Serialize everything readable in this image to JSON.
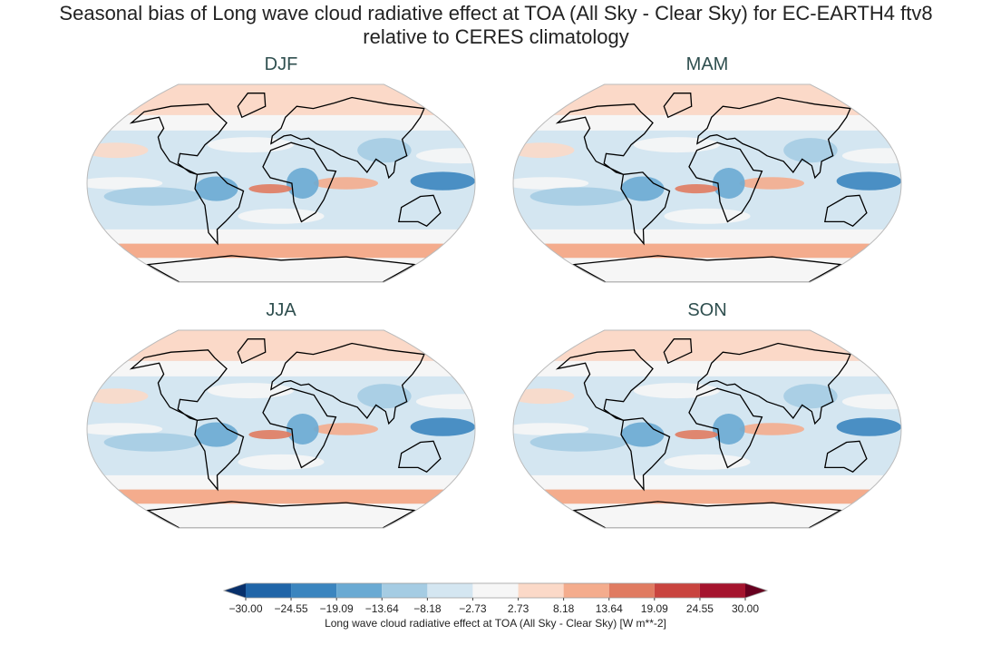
{
  "title_lines": [
    "Seasonal bias of Long wave cloud radiative effect at TOA (All Sky - Clear Sky) for EC-EARTH4 ftv8",
    "relative to CERES climatology"
  ],
  "panels": [
    {
      "title": "DJF"
    },
    {
      "title": "MAM"
    },
    {
      "title": "JJA"
    },
    {
      "title": "SON"
    }
  ],
  "colorbar": {
    "ticks": [
      {
        "value": -30,
        "label": "−30.00"
      },
      {
        "value": -24.55,
        "label": "−24.55"
      },
      {
        "value": -19.09,
        "label": "−19.09"
      },
      {
        "value": -13.64,
        "label": "−13.64"
      },
      {
        "value": -8.18,
        "label": "−8.18"
      },
      {
        "value": -2.73,
        "label": "−2.73"
      },
      {
        "value": 2.73,
        "label": "2.73"
      },
      {
        "value": 8.18,
        "label": "8.18"
      },
      {
        "value": 13.64,
        "label": "13.64"
      },
      {
        "value": 19.09,
        "label": "19.09"
      },
      {
        "value": 24.55,
        "label": "24.55"
      },
      {
        "value": 30,
        "label": "30.00"
      }
    ],
    "colors": [
      "#2065a8",
      "#3b85bf",
      "#6aaad3",
      "#a5cce3",
      "#d4e6f1",
      "#f6f6f6",
      "#fbd9c8",
      "#f4ac8d",
      "#e07b61",
      "#c9443f",
      "#a5142e"
    ],
    "under_color": "#08306b",
    "over_color": "#67001f",
    "label": "Long wave cloud radiative effect at TOA (All Sky - Clear Sky) [W m**-2]"
  }
}
